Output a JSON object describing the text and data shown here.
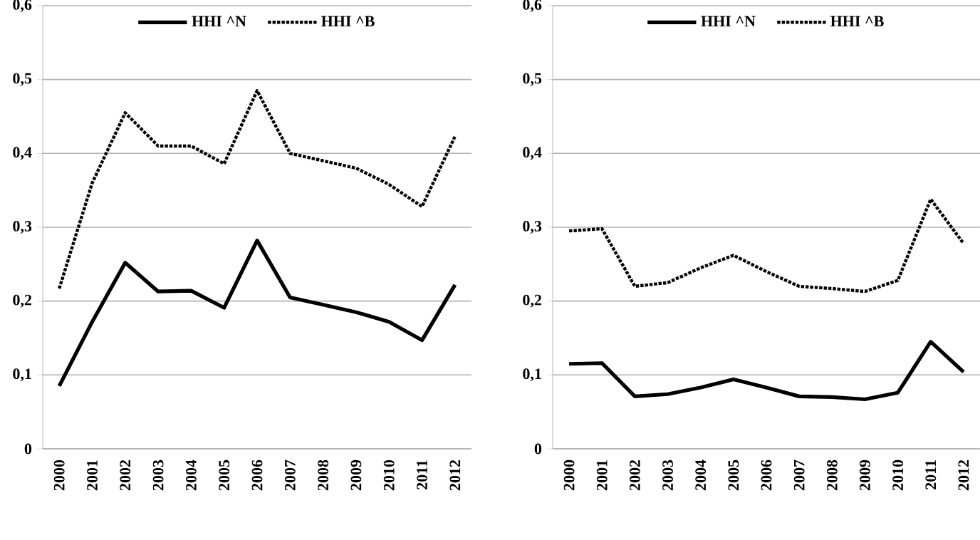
{
  "chart_data": [
    {
      "type": "line",
      "categories": [
        "2000",
        "2001",
        "2002",
        "2003",
        "2004",
        "2005",
        "2006",
        "2007",
        "2008",
        "2009",
        "2010",
        "2011",
        "2012"
      ],
      "ylim": [
        0,
        0.6
      ],
      "yticks": [
        0,
        {
          "value": 0.1,
          "label": "0,1"
        },
        {
          "value": 0.2,
          "label": "0,2"
        },
        {
          "value": 0.3,
          "label": "0,3"
        },
        {
          "value": 0.4,
          "label": "0,4"
        },
        {
          "value": 0.5,
          "label": "0,5"
        },
        {
          "value": 0.6,
          "label": "0,6"
        }
      ],
      "grid": "y",
      "legend": "top",
      "series": [
        {
          "name": "HHI ^N",
          "color": "#000000",
          "line_style": "solid",
          "values": [
            0.085,
            0.172,
            0.252,
            0.213,
            0.214,
            0.191,
            0.282,
            0.205,
            0.195,
            0.185,
            0.172,
            0.147,
            0.222
          ]
        },
        {
          "name": "HHI ^B",
          "color": "#000000",
          "line_style": "dotted",
          "values": [
            0.217,
            0.36,
            0.455,
            0.41,
            0.41,
            0.386,
            0.485,
            0.4,
            0.39,
            0.38,
            0.358,
            0.328,
            0.423
          ]
        }
      ]
    },
    {
      "type": "line",
      "categories": [
        "2000",
        "2001",
        "2002",
        "2003",
        "2004",
        "2005",
        "2006",
        "2007",
        "2008",
        "2009",
        "2010",
        "2011",
        "2012"
      ],
      "ylim": [
        0,
        0.6
      ],
      "yticks": [
        0,
        {
          "value": 0.1,
          "label": "0,1"
        },
        {
          "value": 0.2,
          "label": "0,2"
        },
        {
          "value": 0.3,
          "label": "0,3"
        },
        {
          "value": 0.4,
          "label": "0,4"
        },
        {
          "value": 0.5,
          "label": "0,5"
        },
        {
          "value": 0.6,
          "label": "0,6"
        }
      ],
      "grid": "y",
      "legend": "top",
      "series": [
        {
          "name": "HHI ^N",
          "color": "#000000",
          "line_style": "solid",
          "values": [
            0.115,
            0.116,
            0.071,
            0.074,
            0.083,
            0.094,
            0.083,
            0.071,
            0.07,
            0.067,
            0.076,
            0.145,
            0.104
          ]
        },
        {
          "name": "HHI ^B",
          "color": "#000000",
          "line_style": "dotted",
          "values": [
            0.295,
            0.298,
            0.22,
            0.225,
            0.245,
            0.262,
            0.24,
            0.22,
            0.217,
            0.213,
            0.228,
            0.338,
            0.278
          ]
        }
      ]
    }
  ]
}
